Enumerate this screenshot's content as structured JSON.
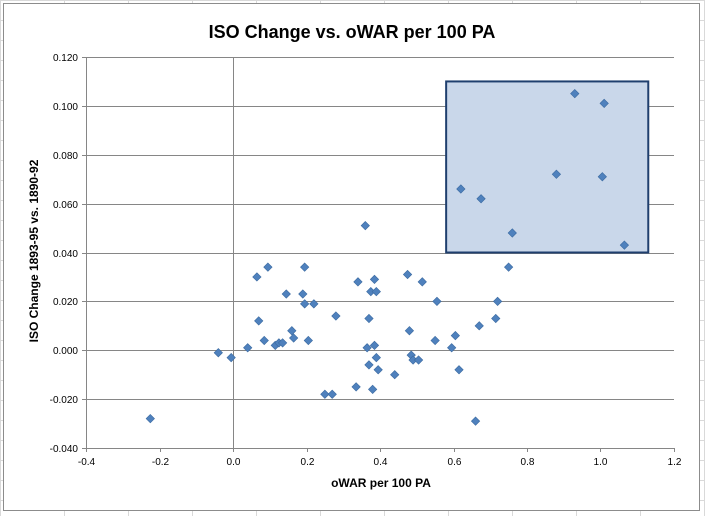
{
  "chart_data": {
    "type": "scatter",
    "title": "ISO Change vs. oWAR per 100 PA",
    "xlabel": "oWAR per 100 PA",
    "ylabel": "ISO Change 1893-95 vs. 1890-92",
    "xlim": [
      -0.4,
      1.2
    ],
    "ylim": [
      -0.04,
      0.12
    ],
    "xticks": [
      -0.4,
      -0.2,
      0.0,
      0.2,
      0.4,
      0.6,
      0.8,
      1.0,
      1.2
    ],
    "xtick_labels": [
      "-0.4",
      "-0.2",
      "0.0",
      "0.2",
      "0.4",
      "0.6",
      "0.8",
      "1.0",
      "1.2"
    ],
    "yticks": [
      -0.04,
      -0.02,
      0.0,
      0.02,
      0.04,
      0.06,
      0.08,
      0.1,
      0.12
    ],
    "ytick_labels": [
      "-0.040",
      "-0.020",
      "0.000",
      "0.020",
      "0.040",
      "0.060",
      "0.080",
      "0.100",
      "0.120"
    ],
    "grid": "horizontal",
    "highlight_box": {
      "x": [
        0.58,
        1.13
      ],
      "y": [
        0.04,
        0.11
      ]
    },
    "colors": {
      "marker": "#4f81bd",
      "box_fill": "#c9d7ea",
      "box_stroke": "#1f3f6e",
      "gridline": "#868686"
    },
    "points": [
      [
        -0.225,
        -0.028
      ],
      [
        -0.04,
        -0.001
      ],
      [
        -0.005,
        -0.003
      ],
      [
        0.04,
        0.001
      ],
      [
        0.065,
        0.03
      ],
      [
        0.07,
        0.012
      ],
      [
        0.085,
        0.004
      ],
      [
        0.095,
        0.034
      ],
      [
        0.115,
        0.002
      ],
      [
        0.125,
        0.003
      ],
      [
        0.135,
        0.003
      ],
      [
        0.145,
        0.023
      ],
      [
        0.16,
        0.008
      ],
      [
        0.165,
        0.005
      ],
      [
        0.19,
        0.023
      ],
      [
        0.195,
        0.019
      ],
      [
        0.195,
        0.034
      ],
      [
        0.205,
        0.004
      ],
      [
        0.22,
        0.019
      ],
      [
        0.25,
        -0.018
      ],
      [
        0.27,
        -0.018
      ],
      [
        0.28,
        0.014
      ],
      [
        0.335,
        -0.015
      ],
      [
        0.34,
        0.028
      ],
      [
        0.36,
        0.051
      ],
      [
        0.365,
        0.001
      ],
      [
        0.37,
        0.013
      ],
      [
        0.37,
        -0.006
      ],
      [
        0.375,
        0.024
      ],
      [
        0.38,
        -0.016
      ],
      [
        0.385,
        0.002
      ],
      [
        0.385,
        0.029
      ],
      [
        0.39,
        -0.003
      ],
      [
        0.39,
        0.024
      ],
      [
        0.395,
        -0.008
      ],
      [
        0.44,
        -0.01
      ],
      [
        0.475,
        0.031
      ],
      [
        0.48,
        0.008
      ],
      [
        0.485,
        -0.002
      ],
      [
        0.49,
        -0.004
      ],
      [
        0.505,
        -0.004
      ],
      [
        0.515,
        0.028
      ],
      [
        0.55,
        0.004
      ],
      [
        0.555,
        0.02
      ],
      [
        0.595,
        0.001
      ],
      [
        0.605,
        0.006
      ],
      [
        0.615,
        -0.008
      ],
      [
        0.62,
        0.066
      ],
      [
        0.66,
        -0.029
      ],
      [
        0.67,
        0.01
      ],
      [
        0.675,
        0.062
      ],
      [
        0.715,
        0.013
      ],
      [
        0.72,
        0.02
      ],
      [
        0.75,
        0.034
      ],
      [
        0.76,
        0.048
      ],
      [
        0.88,
        0.072
      ],
      [
        0.93,
        0.105
      ],
      [
        1.005,
        0.071
      ],
      [
        1.01,
        0.101
      ],
      [
        1.065,
        0.043
      ]
    ]
  }
}
